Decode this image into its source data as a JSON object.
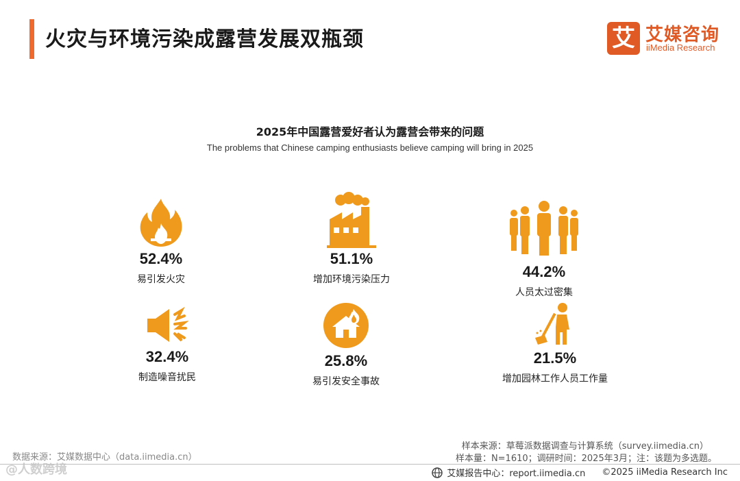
{
  "header": {
    "title": "火灾与环境污染成露营发展双瓶颈",
    "logo_mark": "艾",
    "logo_cn": "艾媒咨询",
    "logo_en": "iiMedia Research"
  },
  "chart_data": {
    "type": "table",
    "title": "2025年中国露营爱好者认为露营会带来的问题",
    "subtitle": "The problems that Chinese camping enthusiasts believe camping will bring in 2025",
    "unit": "%",
    "items": [
      {
        "value": "52.4%",
        "label": "易引发火灾",
        "icon": "fire-icon"
      },
      {
        "value": "51.1%",
        "label": "增加环境污染压力",
        "icon": "factory-icon"
      },
      {
        "value": "44.2%",
        "label": "人员太过密集",
        "icon": "crowd-icon"
      },
      {
        "value": "32.4%",
        "label": "制造噪音扰民",
        "icon": "speaker-noise-icon"
      },
      {
        "value": "25.8%",
        "label": "易引发安全事故",
        "icon": "house-fire-icon"
      },
      {
        "value": "21.5%",
        "label": "增加园林工作人员工作量",
        "icon": "sweeper-icon"
      }
    ]
  },
  "sources": {
    "left": "数据来源：艾媒数据中心（data.iimedia.cn）",
    "watermark": "@人数跨境",
    "sample_source": "样本来源：草莓派数据调查与计算系统（survey.iimedia.cn）",
    "sample_info": "样本量：N=1610；调研时间：2025年3月；注：该题为多选题。"
  },
  "footer": {
    "report": "艾媒报告中心：report.iimedia.cn",
    "copyright": "©2025  iiMedia Research  Inc"
  },
  "colors": {
    "accent": "#ee6a2e",
    "icon": "#ef9a1c",
    "brand": "#e05a26"
  }
}
